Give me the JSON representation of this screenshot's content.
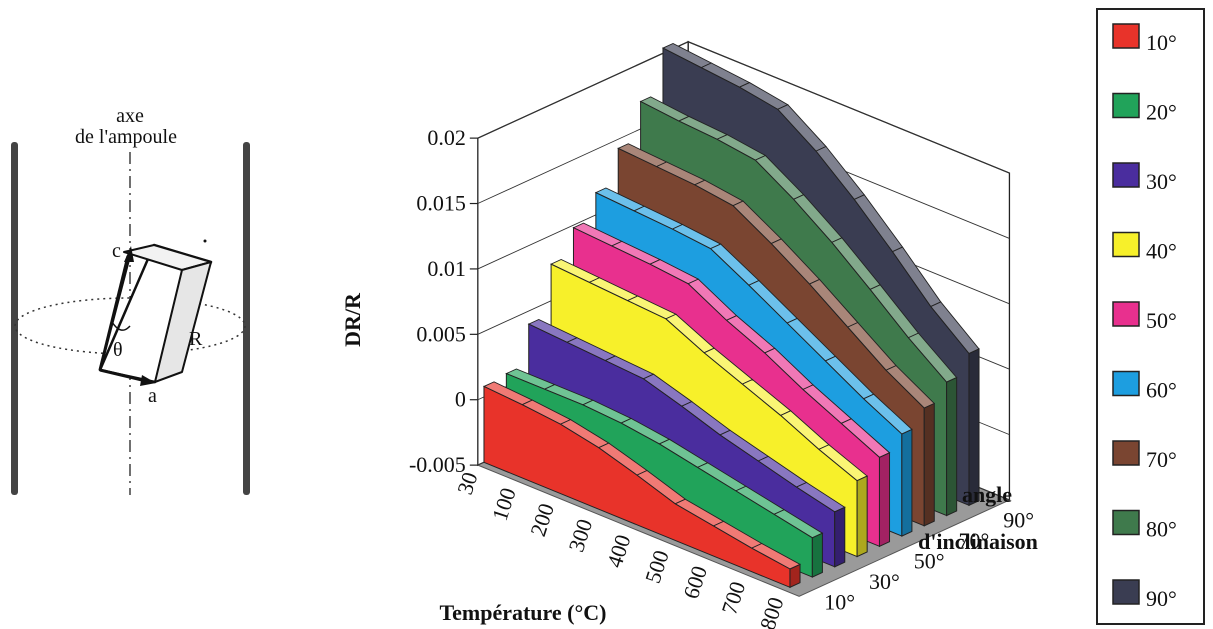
{
  "diagram": {
    "axis_label_line1": "axe",
    "axis_label_line2": "de l'ampoule",
    "label_c": "c",
    "label_a": "a",
    "label_theta": "θ",
    "label_R": "R"
  },
  "chart_data": {
    "type": "area",
    "view": "3d",
    "xlabel": "Température (°C)",
    "ylabel": "DR/R",
    "zlabel_line1": "angle",
    "zlabel_line2": "d'inclinaison",
    "x": [
      30,
      100,
      200,
      300,
      400,
      500,
      600,
      700,
      800
    ],
    "x_tick_labels": [
      "30",
      "100",
      "200",
      "300",
      "400",
      "500",
      "600",
      "700",
      "800"
    ],
    "ylim": [
      -0.005,
      0.02
    ],
    "y_tick_labels": [
      "-0.005",
      "0",
      "0.005",
      "0.01",
      "0.015",
      "0.02"
    ],
    "depth_tick_labels": [
      "10°",
      "30°",
      "50°",
      "70°",
      "90°"
    ],
    "grid": true,
    "legend_position": "right",
    "series": [
      {
        "name": "10°",
        "color": "#e8332a",
        "values": [
          0.0008,
          0.0006,
          0.0003,
          -0.0003,
          -0.0012,
          -0.0022,
          -0.0027,
          -0.0032,
          -0.0036
        ]
      },
      {
        "name": "20°",
        "color": "#21a35a",
        "values": [
          0.001,
          0.001,
          0.001,
          0.0008,
          0.0004,
          -0.0002,
          -0.0008,
          -0.0014,
          -0.002
        ]
      },
      {
        "name": "30°",
        "color": "#4a2d9e",
        "values": [
          0.004,
          0.0038,
          0.0036,
          0.0034,
          0.0025,
          0.0015,
          0.0007,
          -0.0001,
          -0.0008
        ]
      },
      {
        "name": "40°",
        "color": "#f7f02a",
        "values": [
          0.0078,
          0.0076,
          0.0074,
          0.0072,
          0.0058,
          0.0046,
          0.0034,
          0.002,
          0.0008
        ]
      },
      {
        "name": "50°",
        "color": "#e8308e",
        "values": [
          0.0098,
          0.0096,
          0.0094,
          0.0091,
          0.0075,
          0.0062,
          0.0046,
          0.0032,
          0.0018
        ]
      },
      {
        "name": "60°",
        "color": "#1d9ee0",
        "values": [
          0.0117,
          0.0115,
          0.0113,
          0.011,
          0.0094,
          0.0077,
          0.006,
          0.0043,
          0.0028
        ]
      },
      {
        "name": "70°",
        "color": "#7a4531",
        "values": [
          0.0143,
          0.0141,
          0.0139,
          0.0135,
          0.0118,
          0.0099,
          0.0078,
          0.0057,
          0.004
        ]
      },
      {
        "name": "80°",
        "color": "#3f7a4c",
        "values": [
          0.0171,
          0.0168,
          0.0166,
          0.0162,
          0.0144,
          0.0123,
          0.0099,
          0.0074,
          0.0052
        ]
      },
      {
        "name": "90°",
        "color": "#3a3d52",
        "values": [
          0.0204,
          0.0201,
          0.0198,
          0.0193,
          0.0173,
          0.0148,
          0.012,
          0.009,
          0.0066
        ]
      }
    ]
  }
}
